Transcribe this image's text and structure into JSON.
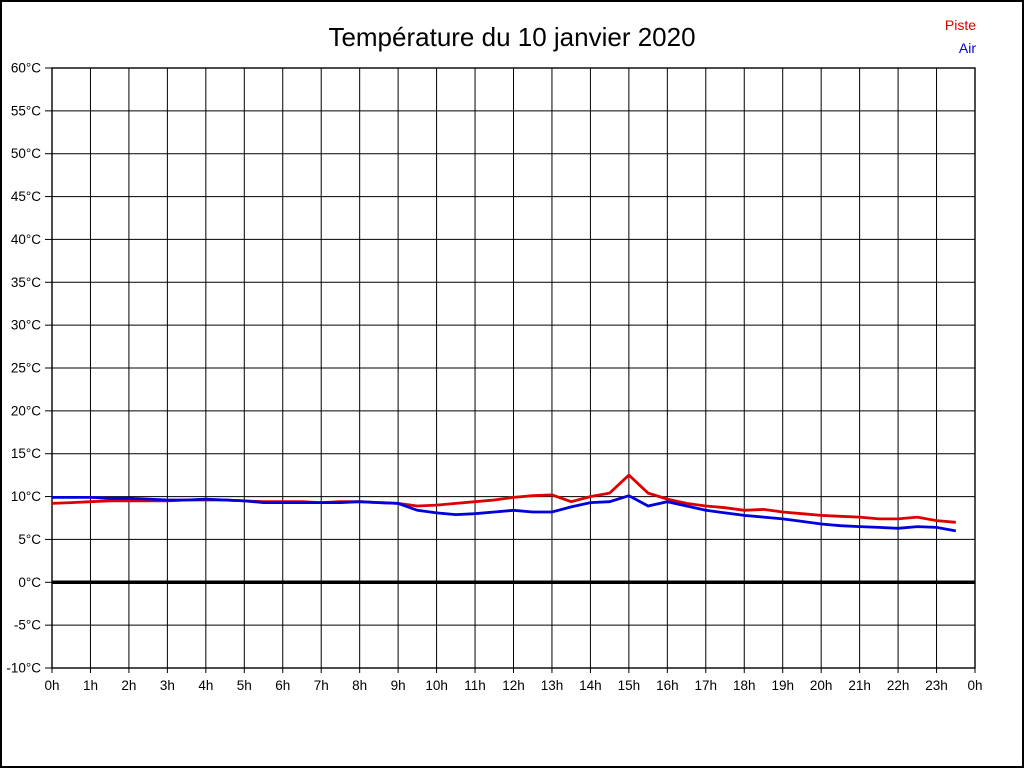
{
  "page": {
    "title": "Température du 10 janvier 2020"
  },
  "legend": {
    "items": [
      {
        "label": "Piste",
        "color": "#dd0000"
      },
      {
        "label": "Air",
        "color": "#0000dd"
      }
    ],
    "position": "top-right"
  },
  "colors": {
    "piste_red": "#dd0000",
    "air_blue": "#0000dd",
    "grid": "#000000",
    "zero_line": "#000000",
    "background": "#ffffff"
  },
  "chart_data": {
    "type": "line",
    "title": "Température du 10 janvier 2020",
    "xlabel": "",
    "ylabel": "",
    "grid": true,
    "legend_position": "top-right",
    "xlim": [
      0,
      24
    ],
    "ylim": [
      -10,
      60
    ],
    "y_tick_step": 5,
    "y_tick_values": [
      60,
      55,
      50,
      45,
      40,
      35,
      30,
      25,
      20,
      15,
      10,
      5,
      0,
      -5,
      -10
    ],
    "y_tick_labels": [
      "60°C",
      "55°C",
      "50°C",
      "45°C",
      "40°C",
      "35°C",
      "30°C",
      "25°C",
      "20°C",
      "15°C",
      "10°C",
      "5°C",
      "0°C",
      "-5°C",
      "-10°C"
    ],
    "x_tick_hours": [
      0,
      1,
      2,
      3,
      4,
      5,
      6,
      7,
      8,
      9,
      10,
      11,
      12,
      13,
      14,
      15,
      16,
      17,
      18,
      19,
      20,
      21,
      22,
      23,
      24
    ],
    "x_tick_labels": [
      "0h",
      "1h",
      "2h",
      "3h",
      "4h",
      "5h",
      "6h",
      "7h",
      "8h",
      "9h",
      "10h",
      "11h",
      "12h",
      "13h",
      "14h",
      "15h",
      "16h",
      "17h",
      "18h",
      "19h",
      "20h",
      "21h",
      "22h",
      "23h",
      "0h"
    ],
    "zero_line_value": 0,
    "x_hours": [
      0,
      0.5,
      1,
      1.5,
      2,
      2.5,
      3,
      3.5,
      4,
      4.5,
      5,
      5.5,
      6,
      6.5,
      7,
      7.5,
      8,
      8.5,
      9,
      9.5,
      10,
      10.5,
      11,
      11.5,
      12,
      12.5,
      13,
      13.5,
      14,
      14.5,
      15,
      15.5,
      16,
      16.5,
      17,
      17.5,
      18,
      18.5,
      19,
      19.5,
      20,
      20.5,
      21,
      21.5,
      22,
      22.5,
      23,
      23.5
    ],
    "series": [
      {
        "name": "Piste",
        "color": "#dd0000",
        "values": [
          9.2,
          9.3,
          9.4,
          9.5,
          9.5,
          9.5,
          9.5,
          9.6,
          9.6,
          9.6,
          9.5,
          9.4,
          9.4,
          9.4,
          9.3,
          9.4,
          9.4,
          9.3,
          9.2,
          8.9,
          9.0,
          9.2,
          9.4,
          9.6,
          9.9,
          10.1,
          10.2,
          9.4,
          10.0,
          10.4,
          12.5,
          10.4,
          9.7,
          9.2,
          8.9,
          8.7,
          8.4,
          8.5,
          8.2,
          8.0,
          7.8,
          7.7,
          7.6,
          7.4,
          7.4,
          7.6,
          7.2,
          7.0
        ]
      },
      {
        "name": "Air",
        "color": "#0000dd",
        "values": [
          9.9,
          9.9,
          9.9,
          9.8,
          9.8,
          9.7,
          9.6,
          9.6,
          9.7,
          9.6,
          9.5,
          9.3,
          9.3,
          9.3,
          9.3,
          9.3,
          9.4,
          9.3,
          9.2,
          8.4,
          8.1,
          7.9,
          8.0,
          8.2,
          8.4,
          8.2,
          8.2,
          8.8,
          9.3,
          9.4,
          10.1,
          8.9,
          9.4,
          8.9,
          8.4,
          8.1,
          7.8,
          7.6,
          7.4,
          7.1,
          6.8,
          6.6,
          6.5,
          6.4,
          6.3,
          6.5,
          6.4,
          6.0
        ]
      }
    ]
  }
}
